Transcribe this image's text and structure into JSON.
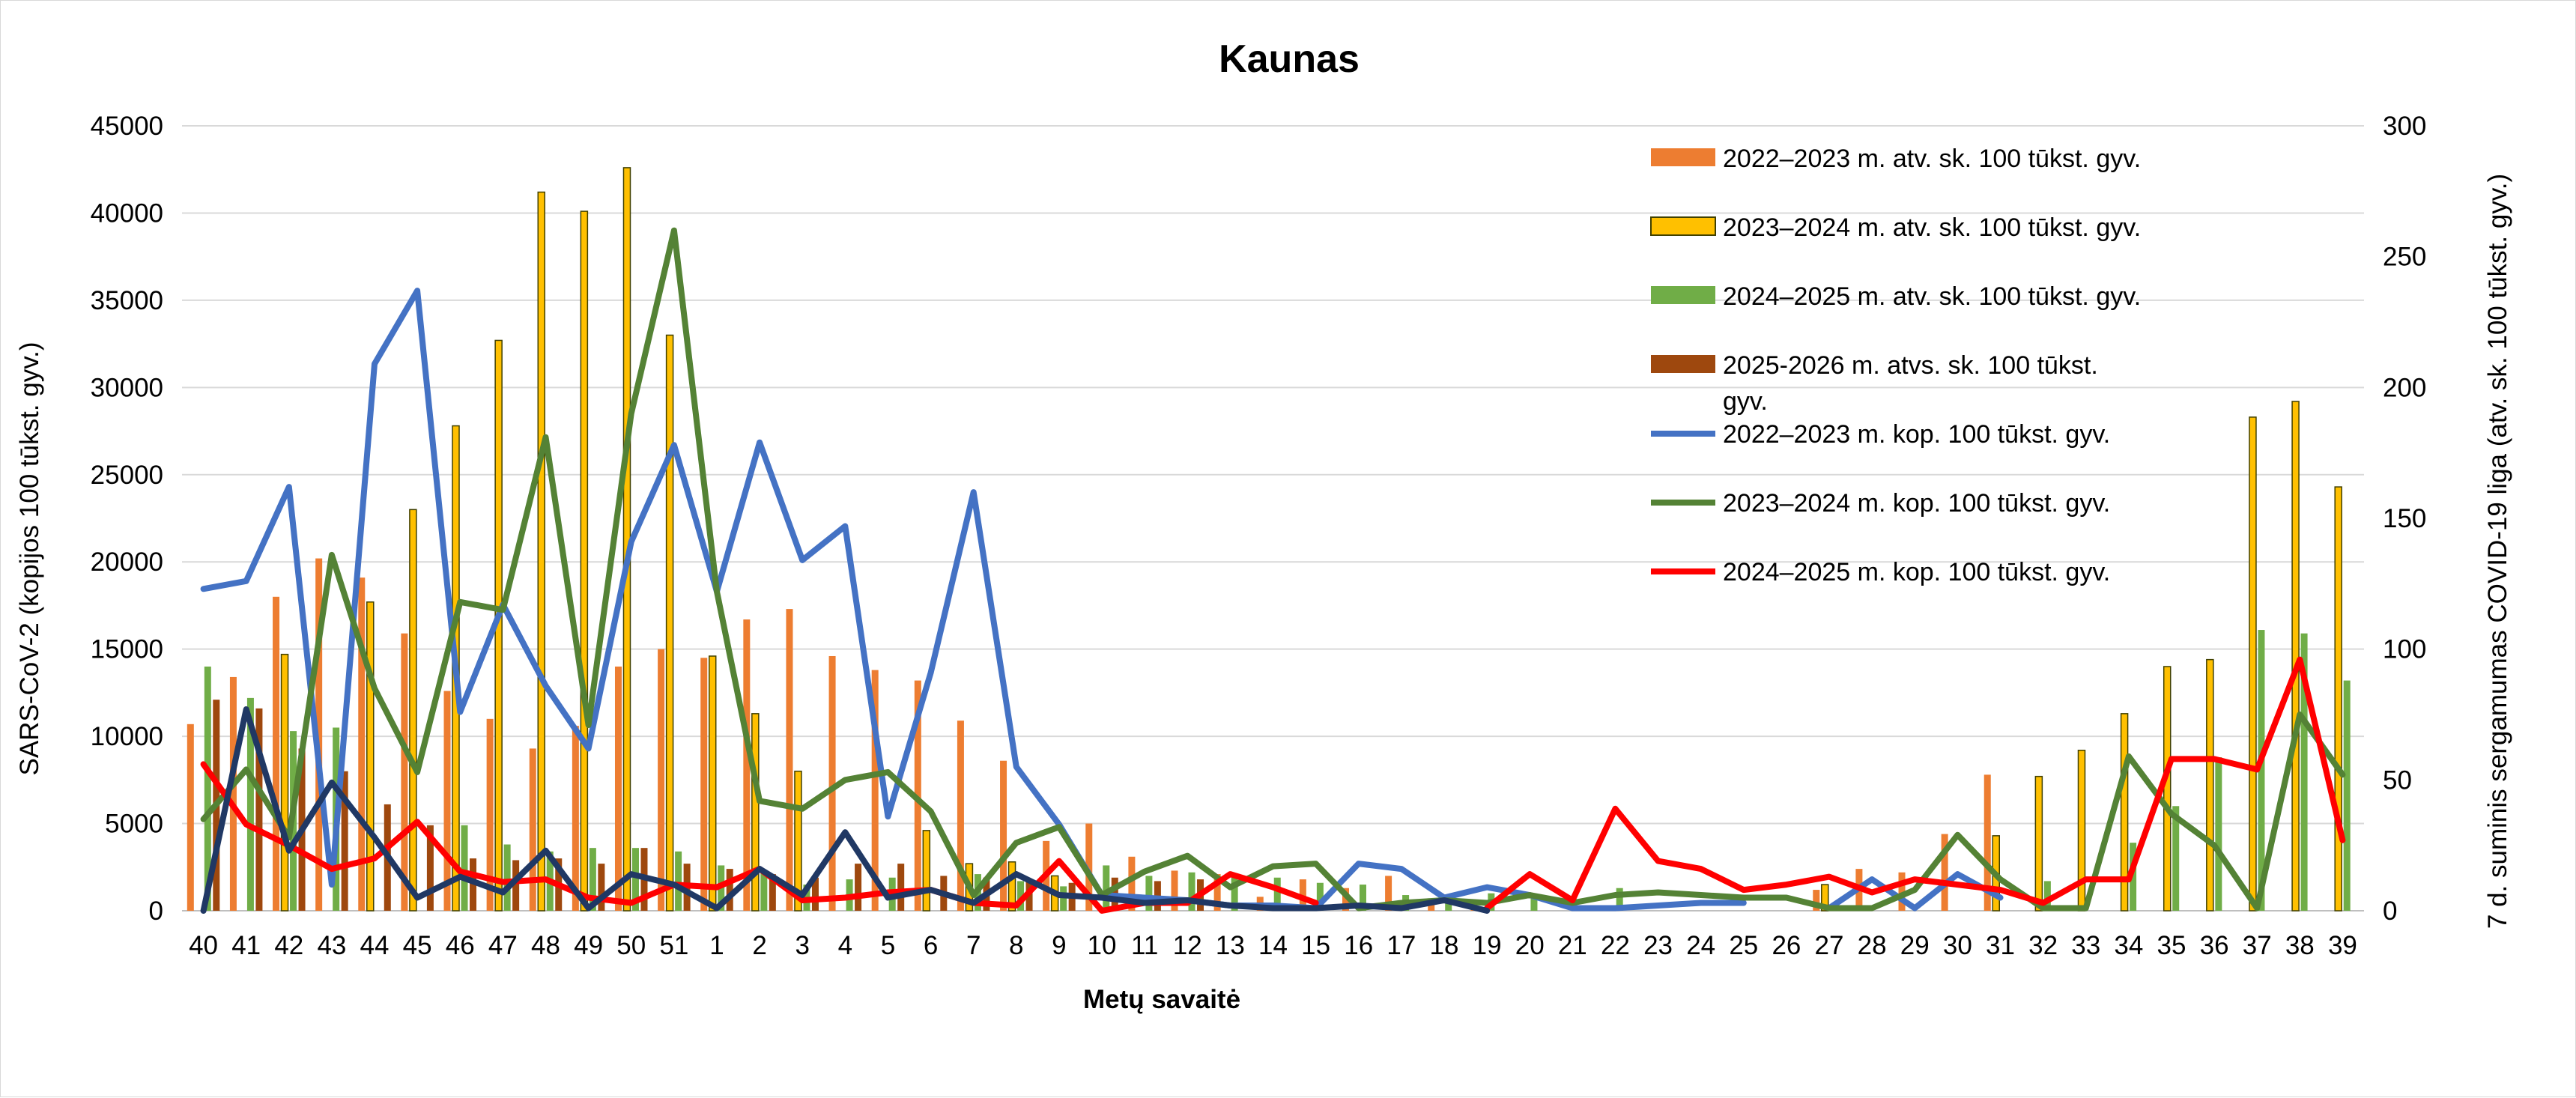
{
  "chart_data": {
    "type": "bar",
    "title": "Kaunas",
    "xlabel": "Metų savaitė",
    "ylabel": "SARS-CoV-2  (kopijos 100 tūkst. gyv.)",
    "y2label": "7 d. suminis sergamumas COVID-19 liga (atv. sk. 100 tūkst. gyv.)",
    "ylim": [
      0,
      45000
    ],
    "y2lim": [
      0,
      300
    ],
    "yticks": [
      "0",
      "5000",
      "10000",
      "15000",
      "20000",
      "25000",
      "30000",
      "35000",
      "40000",
      "45000"
    ],
    "y2ticks": [
      "0",
      "50",
      "100",
      "150",
      "200",
      "250",
      "300"
    ],
    "grid": true,
    "legend_position": "top-right",
    "categories": [
      "40",
      "41",
      "42",
      "43",
      "44",
      "45",
      "46",
      "47",
      "48",
      "49",
      "50",
      "51",
      "1",
      "2",
      "3",
      "4",
      "5",
      "6",
      "7",
      "8",
      "9",
      "10",
      "11",
      "12",
      "13",
      "14",
      "15",
      "16",
      "17",
      "18",
      "19",
      "20",
      "21",
      "22",
      "23",
      "24",
      "25",
      "26",
      "27",
      "28",
      "29",
      "30",
      "31",
      "32",
      "33",
      "34",
      "35",
      "36",
      "37",
      "38",
      "39"
    ],
    "bar_series": [
      {
        "name": "2022–2023 m. atv. sk. 100 tūkst. gyv.",
        "color": "#ed7d31",
        "border": "#ed7d31",
        "values": [
          10700,
          13400,
          18000,
          20200,
          19100,
          15900,
          12600,
          11000,
          9300,
          10600,
          14000,
          15000,
          14500,
          16700,
          17300,
          14600,
          13800,
          13200,
          10900,
          8600,
          4000,
          5000,
          3100,
          2300,
          2100,
          800,
          1800,
          1300,
          2000,
          600,
          500,
          null,
          null,
          null,
          null,
          null,
          null,
          null,
          1200,
          2400,
          2200,
          4400,
          7800,
          null,
          null,
          null,
          null,
          null,
          null,
          null,
          null
        ]
      },
      {
        "name": "2023–2024 m. atv. sk. 100 tūkst. gyv.",
        "color": "#ffc000",
        "border": "#404000",
        "values": [
          null,
          null,
          14700,
          null,
          17700,
          23000,
          27800,
          32700,
          41200,
          40100,
          42600,
          33000,
          14600,
          11300,
          8000,
          null,
          null,
          4600,
          2700,
          2800,
          2000,
          null,
          null,
          null,
          null,
          null,
          null,
          null,
          null,
          null,
          null,
          null,
          null,
          null,
          null,
          null,
          null,
          null,
          1500,
          null,
          null,
          null,
          4300,
          7700,
          9200,
          11300,
          14000,
          14400,
          28300,
          29200,
          24300
        ]
      },
      {
        "name": "2024–2025 m. atv. sk. 100 tūkst. gyv.",
        "color": "#70ad47",
        "border": "#70ad47",
        "values": [
          14000,
          12200,
          10300,
          10500,
          null,
          null,
          4900,
          3800,
          3400,
          3600,
          3600,
          3400,
          2600,
          2200,
          1500,
          1800,
          1900,
          null,
          2100,
          1700,
          1400,
          2600,
          2000,
          2200,
          2000,
          1900,
          1600,
          1500,
          900,
          800,
          1000,
          800,
          null,
          1300,
          null,
          null,
          null,
          null,
          null,
          null,
          null,
          null,
          null,
          1700,
          null,
          3900,
          6000,
          8800,
          16100,
          15900,
          13200
        ]
      },
      {
        "name": "2025-2026 m. atvs. sk. 100 tūkst. gyv.",
        "color": "#9e480e",
        "border": "#9e480e",
        "values": [
          12100,
          11600,
          9300,
          8000,
          6100,
          4900,
          3000,
          2900,
          3000,
          2700,
          3600,
          2700,
          2400,
          2100,
          1900,
          2700,
          2700,
          2000,
          1900,
          1700,
          1600,
          1900,
          1700,
          1800,
          null,
          null,
          null,
          null,
          null,
          null,
          null,
          null,
          null,
          null,
          null,
          null,
          null,
          null,
          null,
          null,
          null,
          null,
          null,
          null,
          null,
          null,
          null,
          null,
          null,
          null,
          null
        ]
      }
    ],
    "line_series": [
      {
        "name": "2022–2023 m. kop. 100 tūkst. gyv.",
        "color": "#4472c4",
        "values": [
          123,
          126,
          162,
          10,
          209,
          237,
          76,
          117,
          86,
          62,
          141,
          178,
          122,
          179,
          134,
          147,
          36,
          91,
          160,
          55,
          33,
          6,
          5,
          4,
          2,
          2,
          1,
          18,
          16,
          5,
          9,
          6,
          1,
          1,
          2,
          3,
          3,
          null,
          1,
          12,
          1,
          14,
          5,
          null,
          null,
          null,
          null,
          null,
          null,
          null,
          null
        ]
      },
      {
        "name": "2023–2024 m. kop. 100 tūkst. gyv.",
        "color": "#548235",
        "values": [
          35,
          54,
          28,
          136,
          85,
          53,
          118,
          115,
          181,
          71,
          190,
          260,
          122,
          42,
          39,
          50,
          53,
          38,
          6,
          26,
          32,
          6,
          15,
          21,
          9,
          17,
          18,
          1,
          3,
          4,
          3,
          6,
          3,
          6,
          7,
          6,
          5,
          5,
          1,
          1,
          8,
          29,
          12,
          1,
          1,
          59,
          37,
          25,
          1,
          75,
          52
        ]
      },
      {
        "name": "2024–2025 m. kop. 100 tūkst. gyv.",
        "color": "#ff0000",
        "values": [
          56,
          33,
          25,
          16,
          20,
          34,
          15,
          11,
          12,
          5,
          3,
          10,
          9,
          16,
          4,
          5,
          7,
          8,
          3,
          2,
          19,
          0,
          3,
          3,
          14,
          9,
          3,
          null,
          null,
          null,
          1,
          14,
          4,
          39,
          19,
          16,
          8,
          10,
          13,
          7,
          12,
          10,
          8,
          3,
          12,
          12,
          58,
          58,
          54,
          96,
          27
        ]
      },
      {
        "name": "",
        "color": "#203864",
        "legend": false,
        "values": [
          0,
          77,
          23,
          49,
          28,
          5,
          13,
          7,
          23,
          1,
          14,
          10,
          1,
          16,
          6,
          30,
          5,
          8,
          3,
          14,
          6,
          5,
          3,
          4,
          2,
          1,
          1,
          2,
          1,
          4,
          0,
          null,
          null,
          null,
          null,
          null,
          null,
          null,
          null,
          null,
          null,
          null,
          null,
          null,
          null,
          null,
          null,
          null,
          null,
          null,
          null
        ]
      }
    ]
  }
}
